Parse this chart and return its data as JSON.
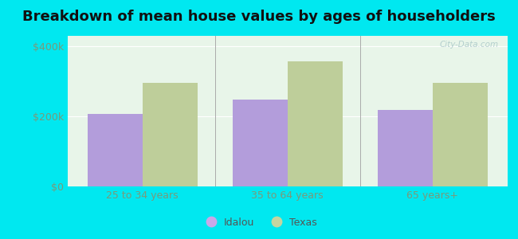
{
  "title": "Breakdown of mean house values by ages of householders",
  "categories": [
    "25 to 34 years",
    "35 to 64 years",
    "65 years+"
  ],
  "idalou_values": [
    207000,
    248000,
    218000
  ],
  "texas_values": [
    296000,
    358000,
    295000
  ],
  "idalou_color": "#b39ddb",
  "texas_color": "#bece9a",
  "background_outer": "#00e8f0",
  "background_inner": "#e8f5e9",
  "yticks": [
    0,
    200000,
    400000
  ],
  "ytick_labels": [
    "$0",
    "$200k",
    "$400k"
  ],
  "ylim": [
    0,
    430000
  ],
  "legend_labels": [
    "Idalou",
    "Texas"
  ],
  "legend_marker_colors": [
    "#c8a8e8",
    "#c5d5a0"
  ],
  "title_fontsize": 13,
  "bar_width": 0.38,
  "watermark": "City-Data.com"
}
